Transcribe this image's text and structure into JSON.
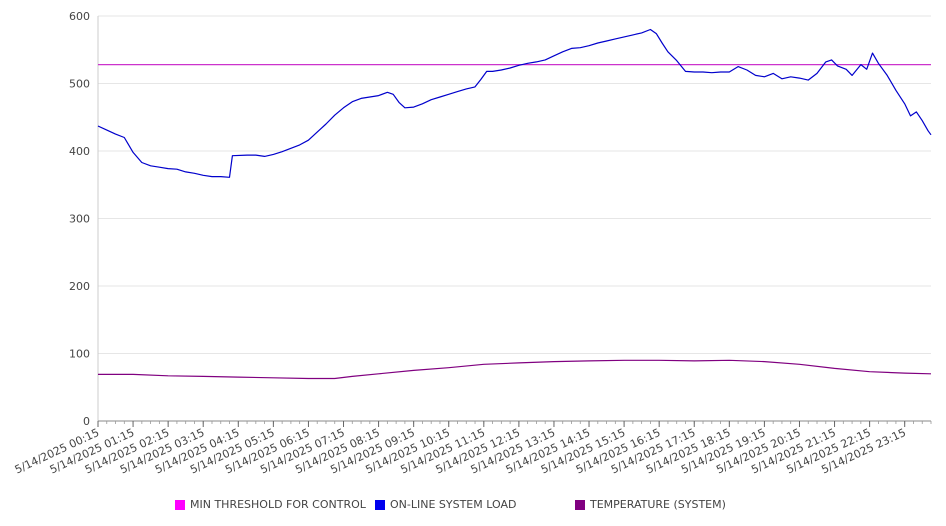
{
  "chart_data": {
    "type": "line",
    "x_start": "5/14/2025 00:15",
    "x_end": "5/15/2025 00:00",
    "x_ticks": [
      "5/14/2025 00:15",
      "5/14/2025 01:15",
      "5/14/2025 02:15",
      "5/14/2025 03:15",
      "5/14/2025 04:15",
      "5/14/2025 05:15",
      "5/14/2025 06:15",
      "5/14/2025 07:15",
      "5/14/2025 08:15",
      "5/14/2025 09:15",
      "5/14/2025 10:15",
      "5/14/2025 11:15",
      "5/14/2025 12:15",
      "5/14/2025 13:15",
      "5/14/2025 14:15",
      "5/14/2025 15:15",
      "5/14/2025 16:15",
      "5/14/2025 17:15",
      "5/14/2025 18:15",
      "5/14/2025 19:15",
      "5/14/2025 20:15",
      "5/14/2025 21:15",
      "5/14/2025 22:15",
      "5/14/2025 23:15"
    ],
    "y_ticks": [
      "0",
      "100",
      "200",
      "300",
      "400",
      "500",
      "600"
    ],
    "ylim": [
      0,
      600
    ],
    "grid": true,
    "legend_position": "bottom",
    "series": [
      {
        "name": "MIN THRESHOLD FOR CONTROL",
        "color": "#cc33cc",
        "points": [
          [
            "5/14/2025 00:15",
            528
          ],
          [
            "5/15/2025 00:00",
            528
          ]
        ]
      },
      {
        "name": "ON-LINE SYSTEM LOAD",
        "color": "#0000cc",
        "points": [
          [
            "5/14/2025 00:15",
            437
          ],
          [
            "5/14/2025 00:30",
            431
          ],
          [
            "5/14/2025 00:45",
            425
          ],
          [
            "5/14/2025 01:00",
            420
          ],
          [
            "5/14/2025 01:15",
            398
          ],
          [
            "5/14/2025 01:30",
            383
          ],
          [
            "5/14/2025 01:45",
            378
          ],
          [
            "5/14/2025 02:00",
            376
          ],
          [
            "5/14/2025 02:15",
            374
          ],
          [
            "5/14/2025 02:30",
            373
          ],
          [
            "5/14/2025 02:45",
            369
          ],
          [
            "5/14/2025 03:00",
            367
          ],
          [
            "5/14/2025 03:15",
            364
          ],
          [
            "5/14/2025 03:30",
            362
          ],
          [
            "5/14/2025 03:45",
            362
          ],
          [
            "5/14/2025 04:00",
            361
          ],
          [
            "5/14/2025 04:05",
            393
          ],
          [
            "5/14/2025 04:30",
            394
          ],
          [
            "5/14/2025 04:45",
            394
          ],
          [
            "5/14/2025 05:00",
            392
          ],
          [
            "5/14/2025 05:15",
            395
          ],
          [
            "5/14/2025 05:30",
            399
          ],
          [
            "5/14/2025 05:45",
            404
          ],
          [
            "5/14/2025 06:00",
            409
          ],
          [
            "5/14/2025 06:15",
            416
          ],
          [
            "5/14/2025 06:30",
            428
          ],
          [
            "5/14/2025 06:45",
            440
          ],
          [
            "5/14/2025 07:00",
            453
          ],
          [
            "5/14/2025 07:15",
            464
          ],
          [
            "5/14/2025 07:30",
            473
          ],
          [
            "5/14/2025 07:45",
            478
          ],
          [
            "5/14/2025 08:00",
            480
          ],
          [
            "5/14/2025 08:15",
            482
          ],
          [
            "5/14/2025 08:30",
            487
          ],
          [
            "5/14/2025 08:40",
            484
          ],
          [
            "5/14/2025 08:50",
            472
          ],
          [
            "5/14/2025 09:00",
            464
          ],
          [
            "5/14/2025 09:15",
            465
          ],
          [
            "5/14/2025 09:30",
            470
          ],
          [
            "5/14/2025 09:45",
            476
          ],
          [
            "5/14/2025 10:00",
            480
          ],
          [
            "5/14/2025 10:15",
            484
          ],
          [
            "5/14/2025 10:30",
            488
          ],
          [
            "5/14/2025 10:45",
            492
          ],
          [
            "5/14/2025 11:00",
            495
          ],
          [
            "5/14/2025 11:10",
            506
          ],
          [
            "5/14/2025 11:20",
            518
          ],
          [
            "5/14/2025 11:30",
            518
          ],
          [
            "5/14/2025 11:45",
            520
          ],
          [
            "5/14/2025 12:00",
            523
          ],
          [
            "5/14/2025 12:15",
            527
          ],
          [
            "5/14/2025 12:30",
            530
          ],
          [
            "5/14/2025 12:45",
            532
          ],
          [
            "5/14/2025 13:00",
            535
          ],
          [
            "5/14/2025 13:15",
            541
          ],
          [
            "5/14/2025 13:30",
            547
          ],
          [
            "5/14/2025 13:45",
            552
          ],
          [
            "5/14/2025 14:00",
            553
          ],
          [
            "5/14/2025 14:15",
            556
          ],
          [
            "5/14/2025 14:30",
            560
          ],
          [
            "5/14/2025 14:45",
            563
          ],
          [
            "5/14/2025 15:00",
            566
          ],
          [
            "5/14/2025 15:15",
            569
          ],
          [
            "5/14/2025 15:30",
            572
          ],
          [
            "5/14/2025 15:45",
            575
          ],
          [
            "5/14/2025 16:00",
            580
          ],
          [
            "5/14/2025 16:10",
            574
          ],
          [
            "5/14/2025 16:20",
            560
          ],
          [
            "5/14/2025 16:30",
            547
          ],
          [
            "5/14/2025 16:45",
            534
          ],
          [
            "5/14/2025 17:00",
            518
          ],
          [
            "5/14/2025 17:15",
            517
          ],
          [
            "5/14/2025 17:30",
            517
          ],
          [
            "5/14/2025 17:45",
            516
          ],
          [
            "5/14/2025 18:00",
            517
          ],
          [
            "5/14/2025 18:15",
            517
          ],
          [
            "5/14/2025 18:30",
            525
          ],
          [
            "5/14/2025 18:45",
            520
          ],
          [
            "5/14/2025 19:00",
            512
          ],
          [
            "5/14/2025 19:15",
            510
          ],
          [
            "5/14/2025 19:30",
            515
          ],
          [
            "5/14/2025 19:45",
            507
          ],
          [
            "5/14/2025 20:00",
            510
          ],
          [
            "5/14/2025 20:15",
            508
          ],
          [
            "5/14/2025 20:30",
            505
          ],
          [
            "5/14/2025 20:45",
            515
          ],
          [
            "5/14/2025 21:00",
            532
          ],
          [
            "5/14/2025 21:10",
            535
          ],
          [
            "5/14/2025 21:20",
            526
          ],
          [
            "5/14/2025 21:35",
            521
          ],
          [
            "5/14/2025 21:45",
            512
          ],
          [
            "5/14/2025 22:00",
            528
          ],
          [
            "5/14/2025 22:10",
            521
          ],
          [
            "5/14/2025 22:20",
            545
          ],
          [
            "5/14/2025 22:30",
            530
          ],
          [
            "5/14/2025 22:45",
            512
          ],
          [
            "5/14/2025 23:00",
            490
          ],
          [
            "5/14/2025 23:15",
            470
          ],
          [
            "5/14/2025 23:25",
            452
          ],
          [
            "5/14/2025 23:35",
            458
          ],
          [
            "5/14/2025 23:45",
            445
          ],
          [
            "5/14/2025 23:55",
            430
          ],
          [
            "5/15/2025 00:00",
            424
          ]
        ]
      },
      {
        "name": "TEMPERATURE (SYSTEM)",
        "color": "#800080",
        "points": [
          [
            "5/14/2025 00:15",
            69
          ],
          [
            "5/14/2025 01:15",
            69
          ],
          [
            "5/14/2025 02:15",
            67
          ],
          [
            "5/14/2025 03:15",
            66
          ],
          [
            "5/14/2025 04:15",
            65
          ],
          [
            "5/14/2025 05:15",
            64
          ],
          [
            "5/14/2025 06:15",
            63
          ],
          [
            "5/14/2025 07:00",
            63
          ],
          [
            "5/14/2025 07:30",
            66
          ],
          [
            "5/14/2025 08:15",
            70
          ],
          [
            "5/14/2025 09:15",
            75
          ],
          [
            "5/14/2025 10:15",
            79
          ],
          [
            "5/14/2025 11:15",
            84
          ],
          [
            "5/14/2025 12:15",
            86
          ],
          [
            "5/14/2025 13:15",
            88
          ],
          [
            "5/14/2025 14:15",
            89
          ],
          [
            "5/14/2025 15:15",
            90
          ],
          [
            "5/14/2025 16:15",
            90
          ],
          [
            "5/14/2025 17:15",
            89
          ],
          [
            "5/14/2025 18:15",
            90
          ],
          [
            "5/14/2025 19:15",
            88
          ],
          [
            "5/14/2025 20:15",
            84
          ],
          [
            "5/14/2025 21:15",
            78
          ],
          [
            "5/14/2025 22:15",
            73
          ],
          [
            "5/14/2025 23:15",
            71
          ],
          [
            "5/15/2025 00:00",
            70
          ]
        ]
      }
    ]
  }
}
